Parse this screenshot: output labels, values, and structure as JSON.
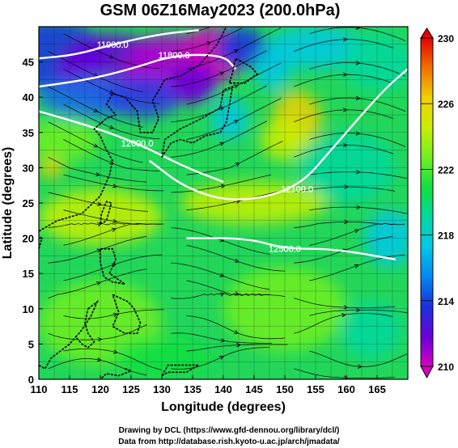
{
  "chart_data": {
    "type": "heatmap",
    "title": "GSM 06Z16May2023 (200.0hPa)",
    "xlabel": "Longitude (degrees)",
    "ylabel": "Latitude  (degrees)",
    "xlim": [
      110,
      170
    ],
    "ylim": [
      0,
      50
    ],
    "xticks": [
      110,
      115,
      120,
      125,
      130,
      135,
      140,
      145,
      150,
      155,
      160,
      165
    ],
    "yticks": [
      0,
      5,
      10,
      15,
      20,
      25,
      30,
      35,
      40,
      45
    ],
    "grid": true,
    "colorbar": {
      "title": "",
      "ticks": [
        230,
        226,
        222,
        218,
        214,
        210
      ],
      "range": [
        210,
        230
      ],
      "colors": [
        "#d600c0",
        "#6a00d8",
        "#1a30e0",
        "#0088f0",
        "#00c8e8",
        "#00d8a0",
        "#10e040",
        "#70f020",
        "#c8f000",
        "#f0d000",
        "#f07000",
        "#e80000"
      ]
    },
    "contours": [
      {
        "label": "11800.0",
        "lat_at": [
          [
            110,
            41.5
          ],
          [
            118,
            42.5
          ],
          [
            125,
            44
          ],
          [
            132,
            46
          ],
          [
            140,
            46
          ],
          [
            142,
            44
          ]
        ]
      },
      {
        "label": "11900.0",
        "lat_at": [
          [
            110,
            45.5
          ],
          [
            116,
            46
          ],
          [
            122,
            47.5
          ],
          [
            130,
            49
          ],
          [
            136,
            49.5
          ]
        ]
      },
      {
        "label": "12000.0",
        "lat_at": [
          [
            110,
            38
          ],
          [
            118,
            36
          ],
          [
            126,
            33.5
          ],
          [
            134,
            30
          ],
          [
            140,
            28
          ]
        ]
      },
      {
        "label": "12100.0",
        "lat_at": [
          [
            128,
            31
          ],
          [
            134,
            27
          ],
          [
            142,
            25
          ],
          [
            152,
            27
          ],
          [
            158,
            33
          ],
          [
            166,
            41
          ],
          [
            170,
            44
          ]
        ]
      },
      {
        "label": "12500.0",
        "lat_at": [
          [
            134,
            20
          ],
          [
            144,
            20
          ],
          [
            150,
            18.5
          ],
          [
            158,
            18.5
          ],
          [
            168,
            17
          ]
        ]
      }
    ]
  },
  "credits": {
    "line1": "Drawing by DCL (https://www.gfd-dennou.org/library/dcl/)",
    "line2": "Data from http://database.rish.kyoto-u.ac.jp/arch/jmadata/"
  }
}
